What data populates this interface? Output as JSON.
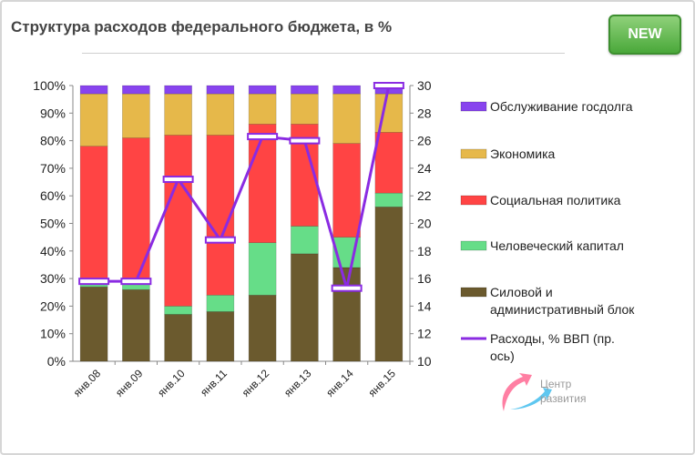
{
  "title": "Структура расходов федерального бюджета, в %",
  "badge": "NEW",
  "watermark": {
    "line1": "Центр",
    "line2": "развития"
  },
  "chart_data": {
    "type": "bar",
    "stacked": true,
    "categories": [
      "янв.08",
      "янв.09",
      "янв.10",
      "янв.11",
      "янв.12",
      "янв.13",
      "янв.14",
      "янв.15"
    ],
    "y_ticks": [
      "0%",
      "10%",
      "20%",
      "30%",
      "40%",
      "50%",
      "60%",
      "70%",
      "80%",
      "90%",
      "100%"
    ],
    "ylim": [
      0,
      100
    ],
    "y2_ticks": [
      "10",
      "12",
      "14",
      "16",
      "18",
      "20",
      "22",
      "24",
      "26",
      "28",
      "30"
    ],
    "y2lim": [
      10,
      30
    ],
    "legend_position": "right",
    "series": [
      {
        "name": "Силовой и административный блок",
        "color": "#6b5a2e",
        "values": [
          27,
          26,
          17,
          18,
          24,
          39,
          34,
          56
        ]
      },
      {
        "name": "Человеческий капитал",
        "color": "#66dd88",
        "values": [
          3,
          4,
          3,
          6,
          19,
          10,
          11,
          5
        ]
      },
      {
        "name": "Социальная политика",
        "color": "#ff4444",
        "values": [
          48,
          51,
          62,
          58,
          43,
          37,
          34,
          22
        ]
      },
      {
        "name": "Экономика",
        "color": "#e6b84a",
        "values": [
          19,
          16,
          15,
          15,
          11,
          11,
          18,
          14
        ]
      },
      {
        "name": "Обслуживание госдолга",
        "color": "#8844ee",
        "values": [
          3,
          3,
          3,
          3,
          3,
          3,
          3,
          3
        ]
      }
    ],
    "line": {
      "name": "Расходы, % ВВП  (пр. ось)",
      "color": "#8a2be2",
      "values": [
        15.8,
        15.8,
        23.2,
        18.8,
        26.3,
        26.0,
        15.3,
        30.0
      ]
    },
    "legend_order": [
      4,
      3,
      2,
      1,
      0
    ]
  }
}
